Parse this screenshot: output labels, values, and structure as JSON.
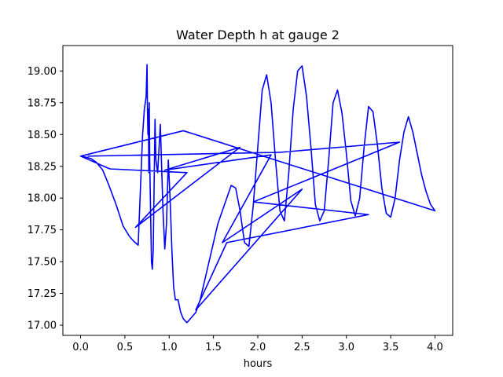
{
  "chart_data": {
    "type": "line",
    "title": "Water Depth h at gauge 2",
    "xlabel": "hours",
    "ylabel": "",
    "xlim": [
      -0.2,
      4.2
    ],
    "ylim": [
      16.92,
      19.2
    ],
    "xticks": [
      0.0,
      0.5,
      1.0,
      1.5,
      2.0,
      2.5,
      3.0,
      3.5,
      4.0
    ],
    "xtick_labels": [
      "0.0",
      "0.5",
      "1.0",
      "1.5",
      "2.0",
      "2.5",
      "3.0",
      "3.5",
      "4.0"
    ],
    "yticks": [
      17.0,
      17.25,
      17.5,
      17.75,
      18.0,
      18.25,
      18.5,
      18.75,
      19.0
    ],
    "ytick_labels": [
      "17.00",
      "17.25",
      "17.50",
      "17.75",
      "18.00",
      "18.25",
      "18.50",
      "18.75",
      "19.00"
    ],
    "grid": false,
    "series": [
      {
        "color": "#0000ff",
        "x": [
          0.0,
          0.07,
          0.12,
          0.18,
          0.25,
          0.32,
          0.4,
          0.48,
          0.55,
          0.6,
          0.65,
          0.7,
          0.72,
          0.74,
          0.75,
          0.755,
          0.76,
          0.765,
          0.77,
          0.775,
          0.78,
          0.79,
          0.8,
          0.81,
          0.82,
          0.84,
          0.85,
          0.87,
          0.9,
          0.93,
          0.95,
          0.97,
          0.99,
          1.01,
          1.03,
          1.05,
          1.07,
          1.1,
          1.13,
          1.16,
          1.2,
          1.25,
          1.3,
          1.35,
          1.4,
          1.45,
          1.5,
          1.55,
          1.6,
          1.65,
          1.7,
          1.75,
          1.8,
          1.85,
          1.9,
          1.95,
          2.0,
          2.05,
          2.1,
          2.15,
          2.2,
          2.25,
          2.3,
          2.35,
          2.4,
          2.45,
          2.5,
          2.55,
          2.6,
          2.65,
          2.7,
          2.75,
          2.8,
          2.85,
          2.9,
          2.95,
          3.0,
          3.05,
          3.1,
          3.15,
          3.2,
          3.25,
          3.3,
          3.35,
          3.4,
          3.45,
          3.5,
          3.55,
          3.6,
          3.65,
          3.7,
          3.75,
          3.8,
          3.85,
          3.9,
          3.95,
          4.0,
          1.16,
          0.0,
          0.33,
          1.2,
          0.62,
          1.8,
          0.95,
          2.15,
          1.6,
          2.5,
          1.3,
          1.65,
          3.25,
          1.95,
          3.6,
          2.25,
          0.08
        ],
        "y": [
          18.33,
          18.32,
          18.31,
          18.28,
          18.22,
          18.1,
          17.95,
          17.78,
          17.7,
          17.66,
          17.63,
          18.5,
          18.7,
          18.8,
          19.05,
          18.7,
          18.5,
          18.7,
          18.2,
          18.75,
          18.3,
          17.9,
          17.5,
          17.44,
          17.6,
          18.62,
          18.3,
          18.2,
          18.58,
          17.9,
          17.6,
          17.8,
          18.3,
          18.0,
          17.6,
          17.3,
          17.2,
          17.2,
          17.1,
          17.05,
          17.02,
          17.06,
          17.1,
          17.2,
          17.35,
          17.5,
          17.65,
          17.8,
          17.9,
          18.0,
          18.1,
          18.08,
          17.9,
          17.65,
          17.62,
          17.95,
          18.4,
          18.85,
          18.97,
          18.75,
          18.3,
          17.9,
          17.82,
          18.2,
          18.7,
          19.0,
          19.04,
          18.8,
          18.4,
          17.95,
          17.82,
          17.9,
          18.3,
          18.75,
          18.85,
          18.67,
          18.35,
          17.98,
          17.86,
          18.0,
          18.4,
          18.72,
          18.68,
          18.42,
          18.08,
          17.88,
          17.85,
          18.0,
          18.3,
          18.52,
          18.64,
          18.52,
          18.35,
          18.18,
          18.05,
          17.95,
          17.9,
          18.53,
          18.33,
          18.23,
          18.2,
          17.77,
          18.4,
          18.22,
          18.34,
          17.65,
          18.07,
          17.12,
          17.65,
          17.87,
          17.97,
          18.44,
          18.36,
          18.33
        ]
      }
    ]
  }
}
